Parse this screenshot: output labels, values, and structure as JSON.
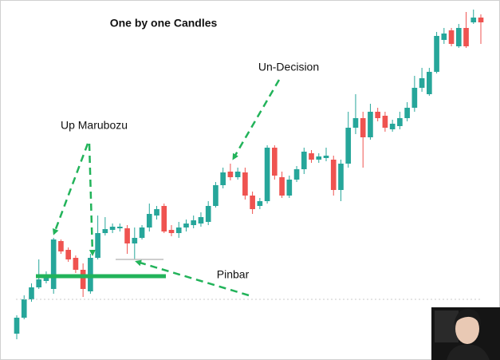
{
  "chart_data": {
    "type": "candlestick",
    "title": "One by one Candles",
    "annotations": [
      "Up Marubozu",
      "Un-Decision",
      "Pinbar"
    ],
    "up_color": "#26a69a",
    "down_color": "#ef5350",
    "ylim": [
      0,
      450
    ],
    "open": [
      32,
      52,
      75,
      90,
      98,
      88,
      148,
      137,
      127,
      112,
      85,
      127,
      158,
      162,
      164,
      164,
      145,
      152,
      165,
      180,
      192,
      162,
      158,
      165,
      168,
      170,
      172,
      192,
      218,
      235,
      228,
      234,
      205,
      192,
      198,
      265,
      228,
      205,
      225,
      238,
      258,
      250,
      252,
      250,
      212,
      245,
      290,
      302,
      278,
      310,
      305,
      288,
      292,
      302,
      315,
      340,
      332,
      360,
      400,
      412,
      392,
      415,
      422,
      428
    ],
    "high": [
      55,
      80,
      95,
      125,
      110,
      152,
      150,
      140,
      130,
      120,
      132,
      180,
      178,
      170,
      170,
      168,
      165,
      168,
      195,
      192,
      195,
      168,
      172,
      175,
      180,
      184,
      198,
      222,
      240,
      245,
      240,
      240,
      210,
      202,
      268,
      268,
      235,
      230,
      242,
      265,
      262,
      258,
      265,
      255,
      250,
      310,
      332,
      310,
      320,
      315,
      310,
      300,
      310,
      322,
      355,
      365,
      365,
      410,
      415,
      415,
      420,
      435,
      438,
      432
    ],
    "low": [
      25,
      50,
      72,
      88,
      95,
      82,
      132,
      122,
      108,
      78,
      82,
      125,
      155,
      158,
      160,
      132,
      125,
      150,
      160,
      175,
      158,
      154,
      152,
      160,
      164,
      166,
      168,
      190,
      214,
      224,
      225,
      200,
      182,
      188,
      195,
      225,
      202,
      202,
      222,
      232,
      246,
      246,
      248,
      205,
      198,
      240,
      282,
      240,
      275,
      298,
      285,
      285,
      288,
      298,
      310,
      335,
      330,
      358,
      395,
      392,
      390,
      390,
      420,
      395
    ],
    "close": [
      52,
      75,
      90,
      100,
      102,
      150,
      135,
      125,
      112,
      88,
      127,
      158,
      163,
      166,
      166,
      145,
      152,
      165,
      182,
      188,
      160,
      158,
      165,
      170,
      174,
      178,
      192,
      218,
      234,
      228,
      235,
      205,
      188,
      198,
      265,
      230,
      205,
      225,
      238,
      260,
      250,
      254,
      255,
      212,
      245,
      290,
      302,
      278,
      310,
      302,
      290,
      295,
      302,
      315,
      340,
      352,
      360,
      405,
      408,
      395,
      415,
      392,
      428,
      422
    ]
  }
}
